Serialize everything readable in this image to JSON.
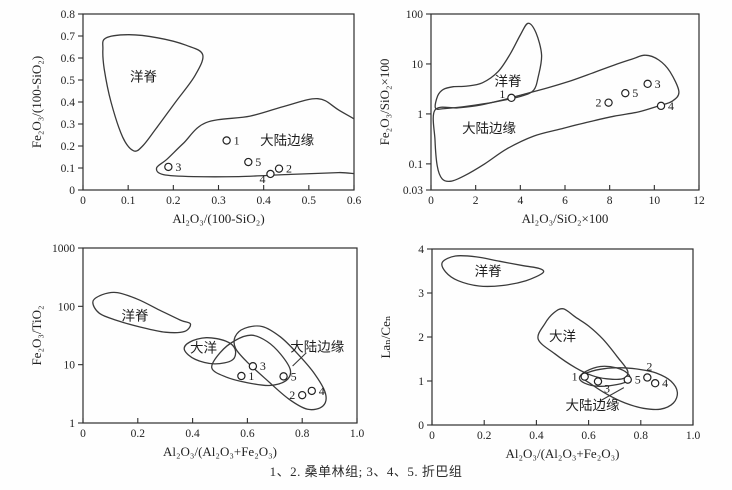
{
  "caption": "1、2. 桑单林组; 3、4、5. 折巴组",
  "chart_data": [
    {
      "id": "top-left",
      "type": "scatter",
      "xlabel": "Al₂O₃/(100-SiO₂)",
      "ylabel": "Fe₂O₃/(100-SiO₂)",
      "xscale": "linear",
      "yscale": "linear",
      "xlim": [
        0,
        0.6
      ],
      "ylim": [
        0,
        0.8
      ],
      "xticks": [
        0,
        0.1,
        0.2,
        0.3,
        0.4,
        0.5,
        0.6
      ],
      "xtick_labels": [
        "0",
        "0.1",
        "0.2",
        "0.3",
        "0.4",
        "0.5",
        "0.6"
      ],
      "yticks": [
        0,
        0.1,
        0.2,
        0.3,
        0.4,
        0.5,
        0.6,
        0.7,
        0.8
      ],
      "ytick_labels": [
        "0",
        "0.1",
        "0.2",
        "0.3",
        "0.4",
        "0.5",
        "0.6",
        "0.7",
        "0.8"
      ],
      "regions": [
        {
          "name": "ocean-ridge",
          "label": "洋脊",
          "label_at": [
            0.134,
            0.515
          ],
          "outline": [
            [
              0.05,
              0.69
            ],
            [
              0.1,
              0.706
            ],
            [
              0.165,
              0.692
            ],
            [
              0.228,
              0.658
            ],
            [
              0.265,
              0.615
            ],
            [
              0.248,
              0.52
            ],
            [
              0.205,
              0.4
            ],
            [
              0.162,
              0.28
            ],
            [
              0.132,
              0.2
            ],
            [
              0.112,
              0.178
            ],
            [
              0.088,
              0.24
            ],
            [
              0.062,
              0.4
            ],
            [
              0.047,
              0.55
            ],
            [
              0.044,
              0.64
            ]
          ]
        },
        {
          "name": "continental-margin",
          "label": "大陆边缘",
          "label_at": [
            0.452,
            0.228
          ],
          "outline": [
            [
              0.163,
              0.1
            ],
            [
              0.178,
              0.07
            ],
            [
              0.245,
              0.061
            ],
            [
              0.345,
              0.061
            ],
            [
              0.46,
              0.071
            ],
            [
              0.565,
              0.079
            ],
            [
              0.635,
              0.088
            ],
            [
              0.635,
              0.26
            ],
            [
              0.565,
              0.365
            ],
            [
              0.52,
              0.415
            ],
            [
              0.45,
              0.383
            ],
            [
              0.37,
              0.336
            ],
            [
              0.272,
              0.306
            ],
            [
              0.222,
              0.212
            ],
            [
              0.186,
              0.14
            ]
          ]
        }
      ],
      "points": [
        {
          "label": "1",
          "x": 0.318,
          "y": 0.225,
          "side": "right"
        },
        {
          "label": "3",
          "x": 0.189,
          "y": 0.105,
          "side": "right"
        },
        {
          "label": "5",
          "x": 0.366,
          "y": 0.127,
          "side": "right"
        },
        {
          "label": "4",
          "x": 0.415,
          "y": 0.073,
          "side": "left-below"
        },
        {
          "label": "2",
          "x": 0.434,
          "y": 0.097,
          "side": "right"
        }
      ],
      "leaders": []
    },
    {
      "id": "top-right",
      "type": "scatter",
      "xlabel": "Al₂O₃/SiO₂×100",
      "ylabel": "Fe₂O₃/SiO₂×100",
      "xscale": "linear",
      "yscale": "log",
      "xlim": [
        0,
        12
      ],
      "ylim": [
        0.03,
        100
      ],
      "xticks": [
        0,
        2,
        4,
        6,
        8,
        10,
        12
      ],
      "xtick_labels": [
        "0",
        "2",
        "4",
        "6",
        "8",
        "10",
        "12"
      ],
      "yticks": [
        0.03,
        0.1,
        1,
        10,
        100
      ],
      "ytick_labels": [
        "0.03",
        "0.1",
        "1",
        "10",
        "100"
      ],
      "regions": [
        {
          "name": "ocean-ridge",
          "label": "洋脊",
          "label_at": [
            3.45,
            4.6
          ],
          "outline": [
            [
              0.2,
              1.3
            ],
            [
              0.3,
              2.3
            ],
            [
              0.55,
              3.1
            ],
            [
              1.0,
              3.5
            ],
            [
              1.6,
              3.6
            ],
            [
              2.3,
              4.2
            ],
            [
              3.0,
              7
            ],
            [
              3.55,
              16
            ],
            [
              4.0,
              38
            ],
            [
              4.35,
              65
            ],
            [
              4.7,
              42
            ],
            [
              4.95,
              15
            ],
            [
              4.8,
              5.5
            ],
            [
              4.6,
              3.0
            ],
            [
              4.1,
              2.3
            ],
            [
              3.3,
              1.9
            ],
            [
              2.4,
              1.6
            ],
            [
              1.4,
              1.38
            ],
            [
              0.6,
              1.28
            ]
          ]
        },
        {
          "name": "continental-margin",
          "label": "大陆边缘",
          "label_at": [
            2.6,
            0.52
          ],
          "outline": [
            [
              0.18,
              1.2
            ],
            [
              1.2,
              1.32
            ],
            [
              2.2,
              1.5
            ],
            [
              3.2,
              1.9
            ],
            [
              4.2,
              2.5
            ],
            [
              5.2,
              3.3
            ],
            [
              6.2,
              4.5
            ],
            [
              7.2,
              6.5
            ],
            [
              8.2,
              9.5
            ],
            [
              9.0,
              12.5
            ],
            [
              9.6,
              15
            ],
            [
              10.2,
              12
            ],
            [
              10.7,
              7
            ],
            [
              11.1,
              2.8
            ],
            [
              10.8,
              1.8
            ],
            [
              10.2,
              1.45
            ],
            [
              9.3,
              1.1
            ],
            [
              8.2,
              0.9
            ],
            [
              7.0,
              0.68
            ],
            [
              5.8,
              0.5
            ],
            [
              4.6,
              0.36
            ],
            [
              3.4,
              0.2
            ],
            [
              2.4,
              0.1
            ],
            [
              1.5,
              0.058
            ],
            [
              0.9,
              0.045
            ],
            [
              0.5,
              0.05
            ],
            [
              0.28,
              0.09
            ],
            [
              0.18,
              0.3
            ]
          ]
        }
      ],
      "points": [
        {
          "label": "1",
          "x": 3.6,
          "y": 2.1,
          "side": "left-above"
        },
        {
          "label": "2",
          "x": 7.95,
          "y": 1.68,
          "side": "left"
        },
        {
          "label": "5",
          "x": 8.7,
          "y": 2.6,
          "side": "right"
        },
        {
          "label": "3",
          "x": 9.7,
          "y": 4.0,
          "side": "right"
        },
        {
          "label": "4",
          "x": 10.3,
          "y": 1.45,
          "side": "right"
        }
      ],
      "leaders": []
    },
    {
      "id": "bottom-left",
      "type": "scatter",
      "xlabel": "Al₂O₃/(Al₂O₃+Fe₂O₃)",
      "ylabel": "Fe₂O₃/TiO₂",
      "xscale": "linear",
      "yscale": "log",
      "xlim": [
        0,
        1.0
      ],
      "ylim": [
        1,
        1000
      ],
      "xticks": [
        0,
        0.2,
        0.4,
        0.6,
        0.8,
        1.0
      ],
      "xtick_labels": [
        "0",
        "0.2",
        "0.4",
        "0.6",
        "0.8",
        "1.0"
      ],
      "yticks": [
        1,
        10,
        100,
        1000
      ],
      "ytick_labels": [
        "1",
        "10",
        "100",
        "1000"
      ],
      "regions": [
        {
          "name": "ocean-ridge",
          "label": "洋脊",
          "label_at": [
            0.19,
            70
          ],
          "outline": [
            [
              0.036,
              120
            ],
            [
              0.07,
              158
            ],
            [
              0.125,
              172
            ],
            [
              0.2,
              132
            ],
            [
              0.28,
              86
            ],
            [
              0.355,
              58
            ],
            [
              0.392,
              50
            ],
            [
              0.37,
              37
            ],
            [
              0.3,
              36
            ],
            [
              0.21,
              44
            ],
            [
              0.13,
              56
            ],
            [
              0.06,
              76
            ]
          ]
        },
        {
          "name": "ocean-basin",
          "label": "大洋",
          "label_at": [
            0.44,
            19.5
          ],
          "outline": [
            [
              0.37,
              18
            ],
            [
              0.39,
              24.5
            ],
            [
              0.45,
              29
            ],
            [
              0.52,
              25.5
            ],
            [
              0.555,
              18.5
            ],
            [
              0.545,
              12
            ],
            [
              0.48,
              10.3
            ],
            [
              0.41,
              12.3
            ]
          ]
        },
        {
          "name": "inner-field",
          "label": "",
          "label_at": null,
          "outline": [
            [
              0.47,
              8.8
            ],
            [
              0.5,
              16
            ],
            [
              0.555,
              26
            ],
            [
              0.615,
              32
            ],
            [
              0.672,
              25
            ],
            [
              0.722,
              15
            ],
            [
              0.757,
              8
            ],
            [
              0.74,
              5.3
            ],
            [
              0.68,
              4.4
            ],
            [
              0.6,
              4.9
            ],
            [
              0.52,
              6.2
            ]
          ]
        },
        {
          "name": "continental-margin",
          "label": "大陆边缘",
          "label_at": [
            0.855,
            20.5
          ],
          "outline": [
            [
              0.555,
              30
            ],
            [
              0.59,
              42
            ],
            [
              0.655,
              45
            ],
            [
              0.72,
              30
            ],
            [
              0.78,
              16
            ],
            [
              0.845,
              7
            ],
            [
              0.885,
              3.2
            ],
            [
              0.875,
              1.95
            ],
            [
              0.82,
              1.72
            ],
            [
              0.75,
              2.6
            ],
            [
              0.67,
              5.5
            ],
            [
              0.6,
              11
            ],
            [
              0.557,
              19
            ]
          ]
        }
      ],
      "points": [
        {
          "label": "1",
          "x": 0.578,
          "y": 6.4,
          "side": "right"
        },
        {
          "label": "3",
          "x": 0.62,
          "y": 9.4,
          "side": "right"
        },
        {
          "label": "5",
          "x": 0.732,
          "y": 6.3,
          "side": "right"
        },
        {
          "label": "2",
          "x": 0.8,
          "y": 3.0,
          "side": "left"
        },
        {
          "label": "4",
          "x": 0.835,
          "y": 3.55,
          "side": "right"
        }
      ],
      "leaders": [
        {
          "from": [
            0.815,
            16
          ],
          "to": [
            0.765,
            9.5
          ]
        }
      ]
    },
    {
      "id": "bottom-right",
      "type": "scatter",
      "xlabel": "Al₂O₃/(Al₂O₃+Fe₂O₃)",
      "ylabel": "Laₙ/Ceₙ",
      "xscale": "linear",
      "yscale": "linear",
      "xlim": [
        0,
        1.0
      ],
      "ylim": [
        0,
        4
      ],
      "xticks": [
        0,
        0.2,
        0.4,
        0.6,
        0.8,
        1.0
      ],
      "xtick_labels": [
        "0",
        "0.2",
        "0.4",
        "0.6",
        "0.8",
        "1.0"
      ],
      "yticks": [
        0,
        1,
        2,
        3,
        4
      ],
      "ytick_labels": [
        "0",
        "1",
        "2",
        "3",
        "4"
      ],
      "regions": [
        {
          "name": "ocean-ridge",
          "label": "洋脊",
          "label_at": [
            0.215,
            3.5
          ],
          "outline": [
            [
              0.04,
              3.7
            ],
            [
              0.09,
              3.84
            ],
            [
              0.17,
              3.82
            ],
            [
              0.26,
              3.72
            ],
            [
              0.35,
              3.62
            ],
            [
              0.41,
              3.56
            ],
            [
              0.425,
              3.46
            ],
            [
              0.36,
              3.28
            ],
            [
              0.27,
              3.17
            ],
            [
              0.18,
              3.16
            ],
            [
              0.1,
              3.28
            ],
            [
              0.052,
              3.48
            ]
          ]
        },
        {
          "name": "ocean-basin",
          "label": "大洋",
          "label_at": [
            0.5,
            2.02
          ],
          "outline": [
            [
              0.407,
              1.95
            ],
            [
              0.432,
              2.3
            ],
            [
              0.467,
              2.55
            ],
            [
              0.503,
              2.64
            ],
            [
              0.55,
              2.45
            ],
            [
              0.6,
              2.25
            ],
            [
              0.655,
              1.95
            ],
            [
              0.71,
              1.55
            ],
            [
              0.75,
              1.22
            ],
            [
              0.73,
              1.05
            ],
            [
              0.67,
              1.05
            ],
            [
              0.615,
              1.12
            ],
            [
              0.55,
              1.3
            ],
            [
              0.47,
              1.62
            ]
          ]
        },
        {
          "name": "inner-field",
          "label": "",
          "label_at": null,
          "outline": [
            [
              0.565,
              1.08
            ],
            [
              0.59,
              1.22
            ],
            [
              0.645,
              1.33
            ],
            [
              0.705,
              1.3
            ],
            [
              0.75,
              1.17
            ],
            [
              0.755,
              1.02
            ],
            [
              0.71,
              0.92
            ],
            [
              0.64,
              0.88
            ],
            [
              0.585,
              0.95
            ]
          ]
        },
        {
          "name": "continental-margin",
          "label": "大陆边缘",
          "label_at": [
            0.615,
            0.45
          ],
          "outline": [
            [
              0.572,
              1.1
            ],
            [
              0.6,
              1.2
            ],
            [
              0.66,
              1.28
            ],
            [
              0.73,
              1.3
            ],
            [
              0.8,
              1.26
            ],
            [
              0.86,
              1.18
            ],
            [
              0.915,
              1.0
            ],
            [
              0.94,
              0.75
            ],
            [
              0.925,
              0.5
            ],
            [
              0.875,
              0.36
            ],
            [
              0.81,
              0.38
            ],
            [
              0.74,
              0.5
            ],
            [
              0.67,
              0.7
            ],
            [
              0.612,
              0.92
            ]
          ]
        }
      ],
      "points": [
        {
          "label": "1",
          "x": 0.585,
          "y": 1.1,
          "side": "left"
        },
        {
          "label": "3",
          "x": 0.636,
          "y": 0.99,
          "side": "below-right"
        },
        {
          "label": "5",
          "x": 0.75,
          "y": 1.03,
          "side": "right"
        },
        {
          "label": "2",
          "x": 0.825,
          "y": 1.08,
          "side": "above"
        },
        {
          "label": "4",
          "x": 0.855,
          "y": 0.95,
          "side": "right"
        }
      ],
      "leaders": [
        {
          "from": [
            0.648,
            0.56
          ],
          "to": [
            0.735,
            0.85
          ]
        }
      ]
    }
  ]
}
